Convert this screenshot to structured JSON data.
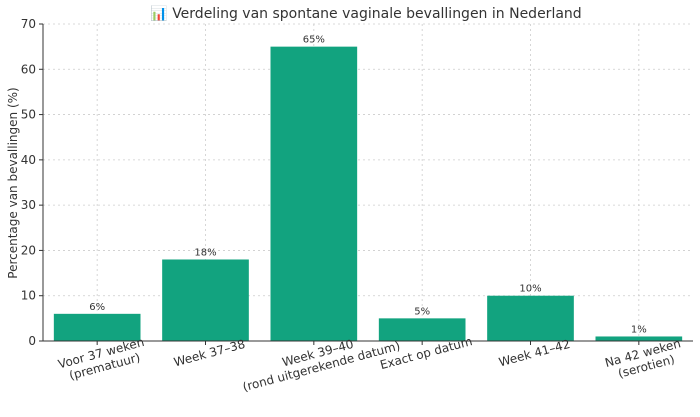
{
  "chart_data": {
    "type": "bar",
    "title": "📊 Verdeling van spontane vaginale bevallingen in Nederland",
    "xlabel": "",
    "ylabel": "Percentage van bevallingen (%)",
    "ylim": [
      0,
      70
    ],
    "yticks": [
      0,
      10,
      20,
      30,
      40,
      50,
      60,
      70
    ],
    "categories": [
      [
        "Voor 37 weken",
        "(prematuur)"
      ],
      [
        "Week 37–38"
      ],
      [
        "Week 39–40",
        "(rond uitgerekende datum)"
      ],
      [
        "Exact op datum"
      ],
      [
        "Week 41–42"
      ],
      [
        "Na 42 weken",
        "(serotien)"
      ]
    ],
    "values": [
      6,
      18,
      65,
      5,
      10,
      1
    ],
    "data_labels": [
      "6%",
      "18%",
      "65%",
      "5%",
      "10%",
      "1%"
    ],
    "bar_color": "#12a37f",
    "grid": true,
    "tick_rotation": -15
  }
}
